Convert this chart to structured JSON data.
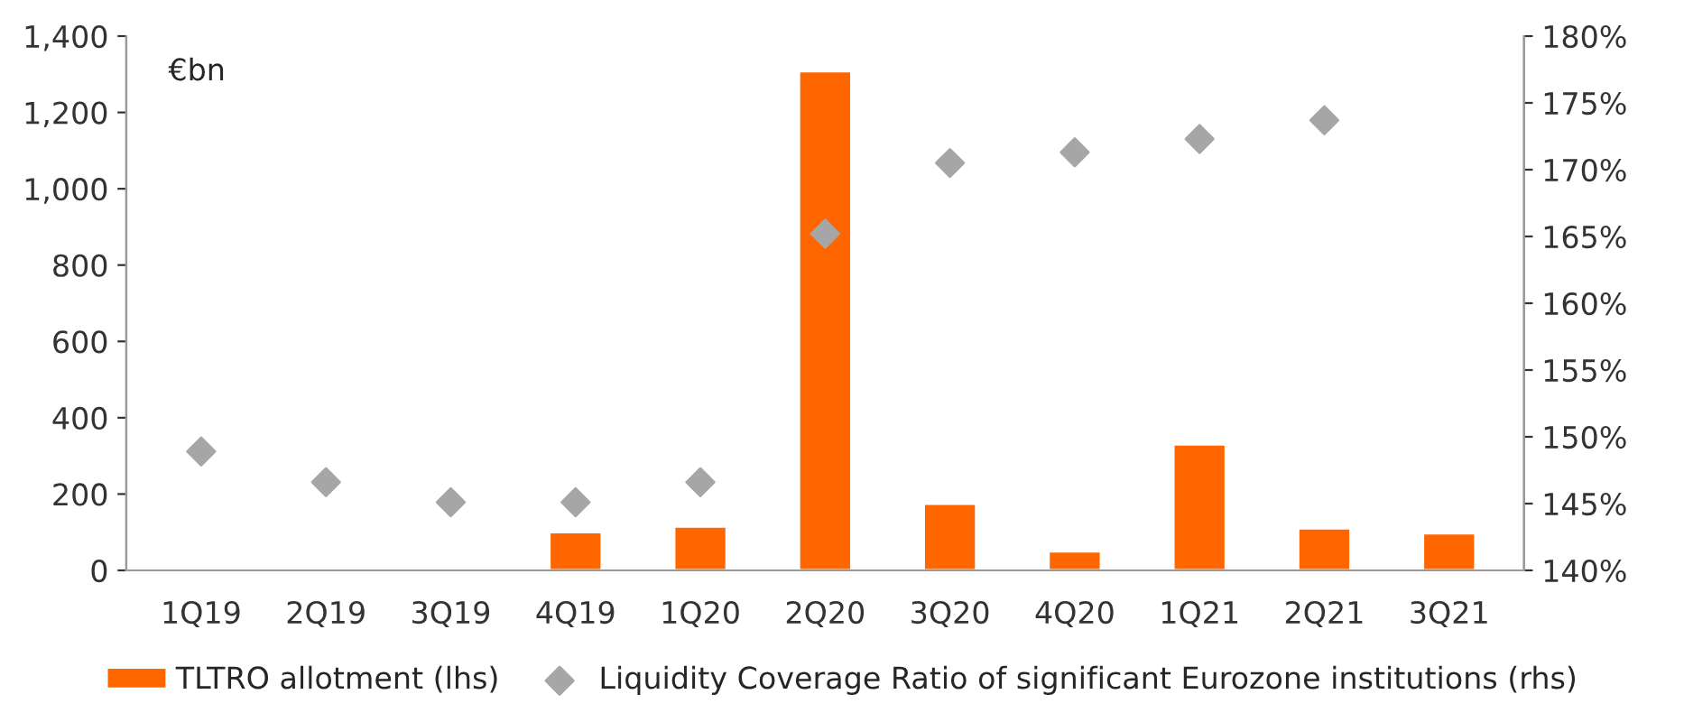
{
  "chart_data": {
    "type": "bar",
    "categories": [
      "1Q19",
      "2Q19",
      "3Q19",
      "4Q19",
      "1Q20",
      "2Q20",
      "3Q20",
      "4Q20",
      "1Q21",
      "2Q21",
      "3Q21"
    ],
    "series": [
      {
        "name": "TLTRO allotment (lhs)",
        "color": "#ff6600",
        "values": [
          null,
          null,
          null,
          100,
          115,
          1308,
          175,
          50,
          330,
          110,
          97
        ]
      },
      {
        "name": "Liquidity Coverage Ratio of significant Eurozone institutions (rhs)",
        "color": "#a6a6a6",
        "type": "scatter",
        "axis": "y2",
        "marker": "diamond",
        "values": [
          148.9,
          146.6,
          145.1,
          145.1,
          146.6,
          165.2,
          170.5,
          171.3,
          172.3,
          173.7,
          null
        ]
      }
    ],
    "ylim": [
      0,
      1400
    ],
    "yticks": [
      0,
      200,
      400,
      600,
      800,
      {
        "value": 1000,
        "label": "1,000"
      },
      {
        "value": 1200,
        "label": "1,200"
      },
      {
        "value": 1400,
        "label": "1,400"
      }
    ],
    "y2lim": [
      140,
      180
    ],
    "y2ticks": [
      {
        "value": 140,
        "label": "140%"
      },
      {
        "value": 145,
        "label": "145%"
      },
      {
        "value": 150,
        "label": "150%"
      },
      {
        "value": 155,
        "label": "155%"
      },
      {
        "value": 160,
        "label": "160%"
      },
      {
        "value": 165,
        "label": "165%"
      },
      {
        "value": 170,
        "label": "170%"
      },
      {
        "value": 175,
        "label": "175%"
      },
      {
        "value": 180,
        "label": "180%"
      }
    ],
    "annotations": [
      "€bn"
    ],
    "legend": "bottom",
    "grid": false
  }
}
